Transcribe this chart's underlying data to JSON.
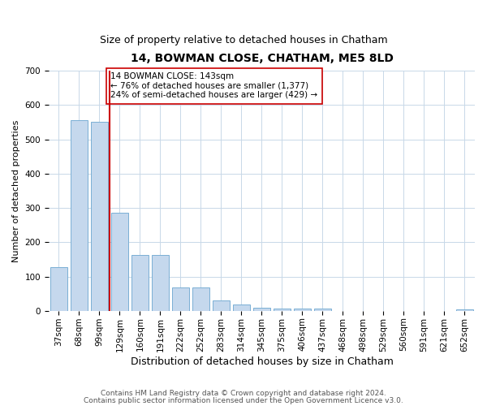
{
  "title": "14, BOWMAN CLOSE, CHATHAM, ME5 8LD",
  "subtitle": "Size of property relative to detached houses in Chatham",
  "xlabel": "Distribution of detached houses by size in Chatham",
  "ylabel": "Number of detached properties",
  "categories": [
    "37sqm",
    "68sqm",
    "99sqm",
    "129sqm",
    "160sqm",
    "191sqm",
    "222sqm",
    "252sqm",
    "283sqm",
    "314sqm",
    "345sqm",
    "375sqm",
    "406sqm",
    "437sqm",
    "468sqm",
    "498sqm",
    "529sqm",
    "560sqm",
    "591sqm",
    "621sqm",
    "652sqm"
  ],
  "values": [
    127,
    557,
    550,
    285,
    163,
    163,
    68,
    68,
    30,
    18,
    10,
    7,
    7,
    7,
    0,
    0,
    0,
    0,
    0,
    0,
    5
  ],
  "bar_color": "#c5d8ed",
  "bar_edgecolor": "#7aafd4",
  "vline_color": "#cc0000",
  "vline_pos": 2.5,
  "annotation_text": "14 BOWMAN CLOSE: 143sqm\n← 76% of detached houses are smaller (1,377)\n24% of semi-detached houses are larger (429) →",
  "annotation_box_edgecolor": "#cc0000",
  "annotation_box_facecolor": "#ffffff",
  "ylim": [
    0,
    700
  ],
  "yticks": [
    0,
    100,
    200,
    300,
    400,
    500,
    600,
    700
  ],
  "background_color": "#ffffff",
  "grid_color": "#c8d8e8",
  "title_fontsize": 10,
  "subtitle_fontsize": 9,
  "xlabel_fontsize": 9,
  "ylabel_fontsize": 8,
  "tick_fontsize": 7.5,
  "annot_fontsize": 7.5,
  "footer_line1": "Contains HM Land Registry data © Crown copyright and database right 2024.",
  "footer_line2": "Contains public sector information licensed under the Open Government Licence v3.0."
}
